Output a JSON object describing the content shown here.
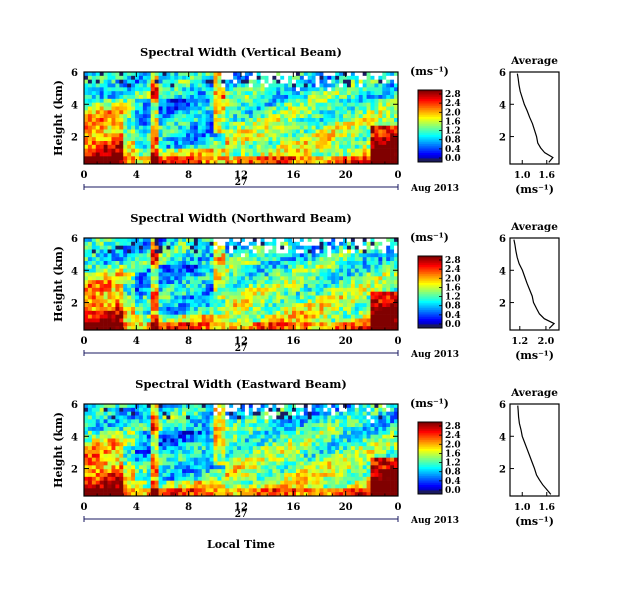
{
  "xaxis_title": "Local Time",
  "colorbar_unit": "(ms⁻¹)",
  "avg_title": "Average",
  "avg_unit": "(ms⁻¹)",
  "ylabel": "Height (km)",
  "date_label": "Aug 2013",
  "day_label": "27",
  "colors": {
    "frame": "#000000",
    "missing": "#ffffff",
    "navy": "#1a1a60"
  },
  "chart_data": [
    {
      "type": "heatmap",
      "title": "Spectral Width (Vertical Beam)",
      "x_ticks": [
        "0",
        "4",
        "8",
        "12",
        "16",
        "20",
        "0"
      ],
      "y_ticks": [
        "6",
        "4",
        "2"
      ],
      "ylim": [
        0.3,
        6
      ],
      "xlim": [
        0,
        24
      ],
      "colorbar": {
        "ticks": [
          "2.8",
          "2.4",
          "2.0",
          "1.6",
          "1.2",
          "0.8",
          "0.4",
          "0.0"
        ],
        "min": 0.0,
        "max": 3.0
      },
      "seed": 11,
      "avg_profile": {
        "x_ticks": [
          "1.0",
          "1.6"
        ],
        "y_ticks": [
          "6",
          "4",
          "2"
        ],
        "xlim": [
          0.7,
          1.9
        ],
        "ylim": [
          0.3,
          6
        ],
        "heights": [
          0.4,
          0.7,
          1.0,
          1.3,
          1.6,
          2.0,
          2.4,
          2.8,
          3.2,
          3.6,
          4.0,
          4.4,
          4.8,
          5.2,
          5.6,
          5.9
        ],
        "values": [
          1.65,
          1.75,
          1.55,
          1.45,
          1.38,
          1.35,
          1.3,
          1.25,
          1.18,
          1.12,
          1.05,
          1.0,
          0.95,
          0.92,
          0.9,
          0.88
        ]
      }
    },
    {
      "type": "heatmap",
      "title": "Spectral Width (Northward Beam)",
      "x_ticks": [
        "0",
        "4",
        "8",
        "12",
        "16",
        "20",
        "0"
      ],
      "y_ticks": [
        "6",
        "4",
        "2"
      ],
      "ylim": [
        0.3,
        6
      ],
      "xlim": [
        0,
        24
      ],
      "colorbar": {
        "ticks": [
          "2.8",
          "2.4",
          "2.0",
          "1.6",
          "1.2",
          "0.8",
          "0.4",
          "0.0"
        ],
        "min": 0.0,
        "max": 3.0
      },
      "seed": 23,
      "avg_profile": {
        "x_ticks": [
          "1.2",
          "2.0"
        ],
        "y_ticks": [
          "6",
          "4",
          "2"
        ],
        "xlim": [
          0.9,
          2.4
        ],
        "ylim": [
          0.3,
          6
        ],
        "heights": [
          0.4,
          0.7,
          1.0,
          1.3,
          1.6,
          2.0,
          2.4,
          2.8,
          3.2,
          3.6,
          4.0,
          4.4,
          4.8,
          5.2,
          5.6,
          5.9
        ],
        "values": [
          2.1,
          2.25,
          1.95,
          1.8,
          1.72,
          1.62,
          1.58,
          1.5,
          1.42,
          1.35,
          1.28,
          1.18,
          1.12,
          1.08,
          1.05,
          1.02
        ]
      }
    },
    {
      "type": "heatmap",
      "title": "Spectral Width (Eastward Beam)",
      "x_ticks": [
        "0",
        "4",
        "8",
        "12",
        "16",
        "20",
        "0"
      ],
      "y_ticks": [
        "6",
        "4",
        "2"
      ],
      "ylim": [
        0.3,
        6
      ],
      "xlim": [
        0,
        24
      ],
      "colorbar": {
        "ticks": [
          "2.8",
          "2.4",
          "2.0",
          "1.6",
          "1.2",
          "0.8",
          "0.4",
          "0.0"
        ],
        "min": 0.0,
        "max": 3.0
      },
      "seed": 37,
      "avg_profile": {
        "x_ticks": [
          "1.0",
          "1.6"
        ],
        "y_ticks": [
          "6",
          "4",
          "2"
        ],
        "xlim": [
          0.7,
          1.9
        ],
        "ylim": [
          0.3,
          6
        ],
        "heights": [
          0.4,
          0.7,
          1.0,
          1.3,
          1.6,
          2.0,
          2.4,
          2.8,
          3.2,
          3.6,
          4.0,
          4.4,
          4.8,
          5.2,
          5.6,
          5.9
        ],
        "values": [
          1.7,
          1.6,
          1.5,
          1.42,
          1.35,
          1.3,
          1.24,
          1.18,
          1.12,
          1.06,
          1.0,
          0.97,
          0.93,
          0.91,
          0.9,
          0.89
        ]
      }
    }
  ]
}
